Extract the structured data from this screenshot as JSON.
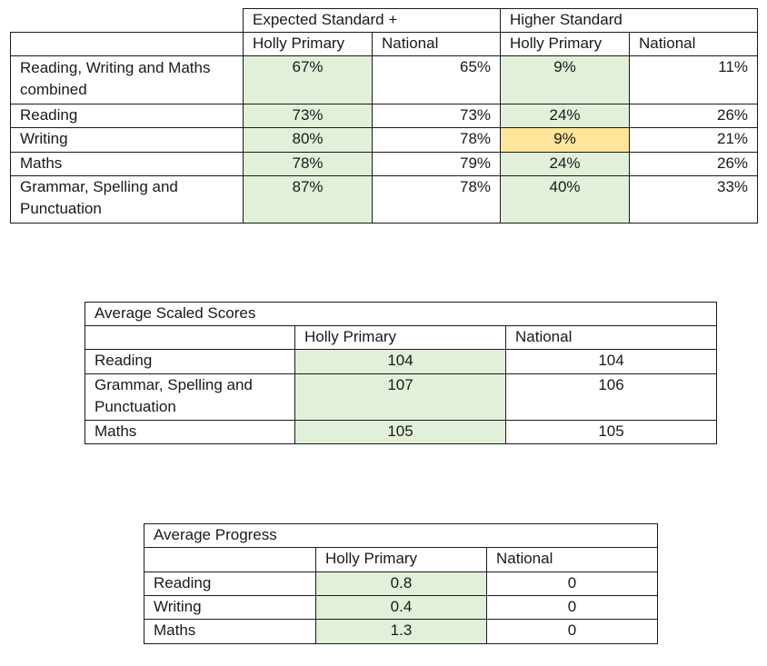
{
  "table1": {
    "group_headers": [
      "Expected Standard +",
      "Higher Standard"
    ],
    "sub_headers": [
      "Holly Primary",
      "National",
      "Holly Primary",
      "National"
    ],
    "rows": [
      {
        "label": "Reading, Writing and Maths combined",
        "exp_school": "67%",
        "exp_national": "65%",
        "high_school": "9%",
        "high_national": "11%",
        "high_flag": "green"
      },
      {
        "label": "Reading",
        "exp_school": "73%",
        "exp_national": "73%",
        "high_school": "24%",
        "high_national": "26%",
        "high_flag": "green"
      },
      {
        "label": "Writing",
        "exp_school": "80%",
        "exp_national": "78%",
        "high_school": "9%",
        "high_national": "21%",
        "high_flag": "amber"
      },
      {
        "label": "Maths",
        "exp_school": "78%",
        "exp_national": "79%",
        "high_school": "24%",
        "high_national": "26%",
        "high_flag": "green"
      },
      {
        "label": "Grammar, Spelling and Punctuation",
        "exp_school": "87%",
        "exp_national": "78%",
        "high_school": "40%",
        "high_national": "33%",
        "high_flag": "green"
      }
    ]
  },
  "table2": {
    "title": "Average Scaled Scores",
    "headers": [
      "Holly Primary",
      "National"
    ],
    "rows": [
      {
        "label": "Reading",
        "school": "104",
        "national": "104"
      },
      {
        "label": "Grammar, Spelling and Punctuation",
        "school": "107",
        "national": "106"
      },
      {
        "label": "Maths",
        "school": "105",
        "national": "105"
      }
    ]
  },
  "table3": {
    "title": "Average Progress",
    "headers": [
      "Holly Primary",
      "National"
    ],
    "rows": [
      {
        "label": "Reading",
        "school": "0.8",
        "national": "0"
      },
      {
        "label": "Writing",
        "school": "0.4",
        "national": "0"
      },
      {
        "label": "Maths",
        "school": "1.3",
        "national": "0"
      }
    ]
  },
  "colors": {
    "highlight_green": "#e2efd9",
    "highlight_amber": "#ffe599",
    "border": "#1a1a1a"
  }
}
